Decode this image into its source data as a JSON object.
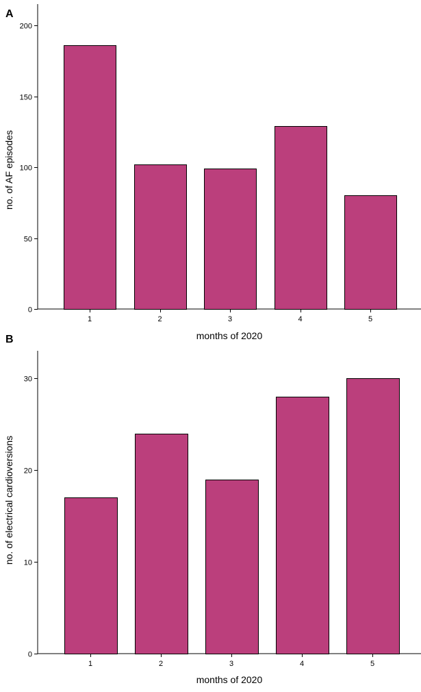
{
  "chart_data": [
    {
      "type": "bar",
      "panel_label": "A",
      "title": "",
      "categories": [
        "1",
        "2",
        "3",
        "4",
        "5"
      ],
      "values": [
        186,
        102,
        99,
        129,
        80
      ],
      "xlabel": "months of 2020",
      "ylabel": "no. of AF episodes",
      "ylim": [
        0,
        215
      ],
      "yticks": [
        0,
        50,
        100,
        150,
        200
      ],
      "grid": false,
      "bar_color": "#bb3f7c"
    },
    {
      "type": "bar",
      "panel_label": "B",
      "title": "",
      "categories": [
        "1",
        "2",
        "3",
        "4",
        "5"
      ],
      "values": [
        17,
        24,
        19,
        28,
        30
      ],
      "xlabel": "months of 2020",
      "ylabel": "no. of electrical cardioversions",
      "ylim": [
        0,
        33
      ],
      "yticks": [
        0,
        10,
        20,
        30
      ],
      "grid": false,
      "bar_color": "#bb3f7c"
    }
  ]
}
